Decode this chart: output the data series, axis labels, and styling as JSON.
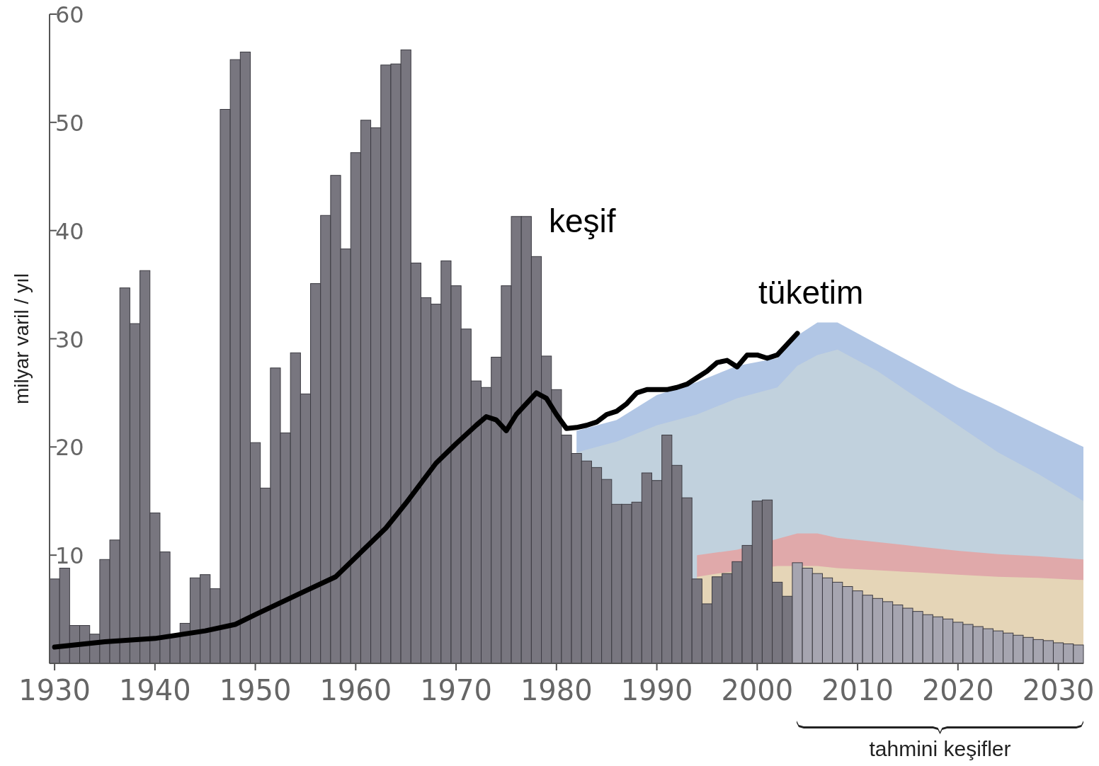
{
  "chart_data": {
    "type": "bar",
    "ylabel": "milyar varil / yıl",
    "xlim": [
      1929.5,
      2032.5
    ],
    "xticks": [
      1930,
      1940,
      1950,
      1960,
      1970,
      1980,
      1990,
      2000,
      2010,
      2020,
      2030
    ],
    "ylim": [
      0,
      60
    ],
    "yticks": [
      {
        "value": 0,
        "label": null
      },
      10,
      20,
      30,
      40,
      50,
      60
    ],
    "grid": false,
    "legend": false,
    "annotations": [
      "tahmini keşifler"
    ],
    "series": [
      {
        "name": "keşif",
        "x": [
          1930,
          1931,
          1932,
          1933,
          1934,
          1935,
          1936,
          1937,
          1938,
          1939,
          1940,
          1941,
          1942,
          1943,
          1944,
          1945,
          1946,
          1947,
          1948,
          1949,
          1950,
          1951,
          1952,
          1953,
          1954,
          1955,
          1956,
          1957,
          1958,
          1959,
          1960,
          1961,
          1962,
          1963,
          1964,
          1965,
          1966,
          1967,
          1968,
          1969,
          1970,
          1971,
          1972,
          1973,
          1974,
          1975,
          1976,
          1977,
          1978,
          1979,
          1980,
          1981,
          1982,
          1983,
          1984,
          1985,
          1986,
          1987,
          1988,
          1989,
          1990,
          1991,
          1992,
          1993,
          1994,
          1995,
          1996,
          1997,
          1998,
          1999,
          2000,
          2001,
          2002,
          2003,
          2004,
          2005,
          2006,
          2007,
          2008,
          2009,
          2010,
          2011,
          2012,
          2013,
          2014,
          2015,
          2016,
          2017,
          2018,
          2019,
          2020,
          2021,
          2022,
          2023,
          2024,
          2025,
          2026,
          2027,
          2028,
          2029,
          2030,
          2031,
          2032
        ],
        "values": [
          7.8,
          8.8,
          3.5,
          3.5,
          2.7,
          9.6,
          11.4,
          34.7,
          31.4,
          36.3,
          13.9,
          10.3,
          2.6,
          3.7,
          7.9,
          8.2,
          6.9,
          51.2,
          55.8,
          56.5,
          20.4,
          16.2,
          27.3,
          21.3,
          28.7,
          24.9,
          35.1,
          41.4,
          45.1,
          38.3,
          47.2,
          50.2,
          49.5,
          55.3,
          55.4,
          56.7,
          37,
          33.8,
          33.2,
          37.2,
          34.9,
          30.9,
          26.1,
          25.5,
          28.3,
          34.9,
          41.3,
          41.3,
          37.6,
          28.4,
          25.3,
          21.1,
          19.4,
          18.7,
          18.1,
          17,
          14.7,
          14.7,
          14.9,
          17.6,
          16.9,
          21.1,
          18.3,
          15.3,
          7.8,
          5.5,
          8,
          8.3,
          9.4,
          10.9,
          15,
          15.1,
          7.5,
          6.2,
          9.3,
          8.8,
          8.3,
          7.9,
          7.5,
          7.1,
          6.7,
          6.3,
          6,
          5.7,
          5.4,
          5.1,
          4.8,
          4.5,
          4.3,
          4.1,
          3.8,
          3.6,
          3.4,
          3.2,
          3,
          2.8,
          2.6,
          2.4,
          2.2,
          2.1,
          1.9,
          1.8,
          1.7
        ],
        "colors": [
          "#78767f",
          "#78767f",
          "#78767f",
          "#78767f",
          "#78767f",
          "#78767f",
          "#78767f",
          "#78767f",
          "#78767f",
          "#78767f",
          "#78767f",
          "#78767f",
          "#78767f",
          "#78767f",
          "#78767f",
          "#78767f",
          "#78767f",
          "#78767f",
          "#78767f",
          "#78767f",
          "#78767f",
          "#78767f",
          "#78767f",
          "#78767f",
          "#78767f",
          "#78767f",
          "#78767f",
          "#78767f",
          "#78767f",
          "#78767f",
          "#78767f",
          "#78767f",
          "#78767f",
          "#78767f",
          "#78767f",
          "#78767f",
          "#78767f",
          "#78767f",
          "#78767f",
          "#78767f",
          "#78767f",
          "#78767f",
          "#78767f",
          "#78767f",
          "#78767f",
          "#78767f",
          "#78767f",
          "#78767f",
          "#78767f",
          "#78767f",
          "#78767f",
          "#78767f",
          "#78767f",
          "#78767f",
          "#78767f",
          "#78767f",
          "#78767f",
          "#78767f",
          "#78767f",
          "#78767f",
          "#78767f",
          "#78767f",
          "#78767f",
          "#78767f",
          "#78767f",
          "#78767f",
          "#78767f",
          "#78767f",
          "#78767f",
          "#78767f",
          "#78767f",
          "#78767f",
          "#78767f",
          "#78767f",
          "#a6a5b0",
          "#a6a5b0",
          "#a6a5b0",
          "#a6a5b0",
          "#a6a5b0",
          "#a6a5b0",
          "#a6a5b0",
          "#a6a5b0",
          "#a6a5b0",
          "#a6a5b0",
          "#a6a5b0",
          "#a6a5b0",
          "#a6a5b0",
          "#a6a5b0",
          "#a6a5b0",
          "#a6a5b0",
          "#a6a5b0",
          "#a6a5b0",
          "#a6a5b0",
          "#a6a5b0",
          "#a6a5b0",
          "#a6a5b0",
          "#a6a5b0",
          "#a6a5b0",
          "#a6a5b0",
          "#a6a5b0",
          "#a6a5b0",
          "#a6a5b0",
          "#a6a5b0"
        ]
      },
      {
        "type": "area",
        "color": "#a9c0e2",
        "x": [
          1982,
          1986,
          1990,
          1994,
          1998,
          2002,
          2004,
          2006,
          2008,
          2012,
          2016,
          2020,
          2024,
          2028,
          2032.5
        ],
        "values": [
          21.5,
          22.5,
          24.8,
          26,
          27.5,
          28.2,
          30.3,
          31.5,
          31.5,
          29.5,
          27.5,
          25.5,
          23.8,
          22,
          20
        ]
      },
      {
        "type": "area",
        "color": "#c3d1db",
        "x": [
          1982,
          1986,
          1990,
          1994,
          1998,
          2002,
          2004,
          2006,
          2008,
          2012,
          2016,
          2020,
          2024,
          2028,
          2032.5
        ],
        "values": [
          19.5,
          20.5,
          22,
          23,
          24.5,
          25.5,
          27.5,
          28.5,
          29,
          27,
          24.5,
          22,
          19.5,
          17.5,
          15
        ]
      },
      {
        "type": "area",
        "color": "#e3a4a4",
        "x": [
          1994,
          1998,
          2002,
          2004,
          2006,
          2008,
          2012,
          2016,
          2020,
          2024,
          2028,
          2032.5
        ],
        "values": [
          10,
          10.5,
          11.5,
          12,
          12,
          11.6,
          11.2,
          10.8,
          10.4,
          10.1,
          9.9,
          9.6
        ]
      },
      {
        "type": "area",
        "color": "#e6d9b8",
        "x": [
          1994,
          1996,
          2002,
          2006,
          2008,
          2012,
          2016,
          2020,
          2024,
          2028,
          2032.5
        ],
        "values": [
          8,
          8.3,
          9,
          9,
          8.8,
          8.6,
          8.4,
          8.2,
          8,
          7.9,
          7.7
        ]
      },
      {
        "name": "tüketim",
        "type": "line",
        "color": "#000000",
        "x": [
          1930,
          1935,
          1940,
          1945,
          1948,
          1950,
          1955,
          1958,
          1960,
          1963,
          1965,
          1968,
          1970,
          1972,
          1973,
          1974,
          1975,
          1976,
          1977,
          1978,
          1979,
          1980,
          1981,
          1982,
          1983,
          1984,
          1985,
          1986,
          1987,
          1988,
          1989,
          1990,
          1991,
          1992,
          1993,
          1994,
          1995,
          1996,
          1997,
          1998,
          1999,
          2000,
          2001,
          2002,
          2003,
          2004
        ],
        "values": [
          1.5,
          2,
          2.3,
          3,
          3.6,
          4.5,
          6.7,
          8,
          9.8,
          12.5,
          14.8,
          18.5,
          20.3,
          22,
          22.8,
          22.5,
          21.5,
          23,
          24,
          25,
          24.5,
          23,
          21.7,
          21.8,
          22,
          22.3,
          23,
          23.3,
          24,
          25,
          25.3,
          25.3,
          25.3,
          25.5,
          25.8,
          26.4,
          27,
          27.8,
          28,
          27.4,
          28.5,
          28.5,
          28.2,
          28.5,
          29.5,
          30.5
        ]
      }
    ]
  }
}
